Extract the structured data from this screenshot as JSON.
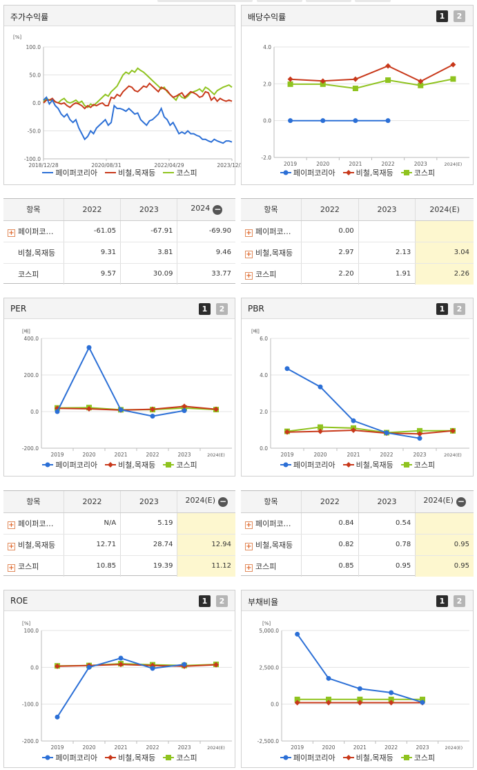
{
  "colors": {
    "company": "#2b6fd6",
    "industry": "#c8381a",
    "kospi": "#8fc31f"
  },
  "series_names": [
    "페이퍼코리아",
    "비철,목재등",
    "코스피"
  ],
  "row_labels_short": [
    "페이퍼코…",
    "비철,목재등",
    "코스피"
  ],
  "table_head": "항목",
  "badges": {
    "one": "1",
    "two": "2"
  },
  "panels": {
    "stock": {
      "title": "주가수익률",
      "chart_data": {
        "type": "line",
        "title": "주가수익률",
        "unit": "[%]",
        "ylim": [
          -100,
          100
        ],
        "yticks": [
          "100.0",
          "50.0",
          "0.0",
          "-50.0",
          "-100.0"
        ],
        "xticks": [
          "2018/12/28",
          "2020/08/31",
          "2022/04/29",
          "2023/12/28"
        ],
        "series": [
          {
            "name": "페이퍼코리아",
            "values": [
              5,
              10,
              -2,
              5,
              -5,
              -10,
              -20,
              -25,
              -20,
              -30,
              -35,
              -30,
              -45,
              -55,
              -65,
              -60,
              -50,
              -55,
              -45,
              -40,
              -35,
              -30,
              -40,
              -35,
              -5,
              -10,
              -10,
              -12,
              -15,
              -10,
              -15,
              -20,
              -18,
              -30,
              -35,
              -40,
              -32,
              -30,
              -25,
              -20,
              -10,
              -25,
              -30,
              -40,
              -35,
              -45,
              -55,
              -52,
              -55,
              -50,
              -55,
              -55,
              -58,
              -60,
              -65,
              -65,
              -68,
              -70,
              -65,
              -68,
              -70,
              -72,
              -68,
              -68,
              -70
            ]
          },
          {
            "name": "비철,목재등",
            "values": [
              0,
              5,
              5,
              8,
              2,
              0,
              -2,
              0,
              -5,
              -8,
              -3,
              0,
              -2,
              -5,
              -10,
              -5,
              -8,
              -3,
              -5,
              -2,
              0,
              -5,
              -5,
              10,
              8,
              15,
              12,
              20,
              25,
              30,
              28,
              22,
              20,
              25,
              30,
              28,
              35,
              30,
              25,
              20,
              28,
              25,
              22,
              15,
              10,
              12,
              15,
              18,
              10,
              15,
              20,
              18,
              15,
              10,
              12,
              20,
              18,
              5,
              10,
              3,
              8,
              5,
              3,
              5,
              3
            ]
          },
          {
            "name": "코스피",
            "values": [
              2,
              8,
              5,
              5,
              2,
              0,
              5,
              8,
              2,
              0,
              2,
              5,
              0,
              3,
              -5,
              -8,
              -2,
              -5,
              0,
              5,
              10,
              15,
              12,
              20,
              25,
              30,
              40,
              50,
              55,
              52,
              58,
              55,
              62,
              58,
              55,
              50,
              45,
              40,
              35,
              30,
              25,
              28,
              20,
              15,
              10,
              5,
              15,
              10,
              8,
              12,
              18,
              20,
              22,
              25,
              20,
              28,
              25,
              20,
              15,
              22,
              25,
              28,
              30,
              32,
              28
            ]
          }
        ]
      }
    },
    "dividend": {
      "title": "배당수익률",
      "chart_data": {
        "type": "line",
        "title": "배당수익률",
        "ylim": [
          -2,
          4
        ],
        "yticks": [
          "4.0",
          "2.0",
          "0.0",
          "-2.0"
        ],
        "categories": [
          "2019",
          "2020",
          "2021",
          "2022",
          "2023",
          "2024(E)"
        ],
        "series": [
          {
            "name": "페이퍼코리아",
            "values": [
              0.0,
              0.0,
              0.0,
              0.0,
              null,
              null
            ]
          },
          {
            "name": "비철,목재등",
            "values": [
              2.25,
              2.15,
              2.25,
              2.97,
              2.13,
              3.04
            ]
          },
          {
            "name": "코스피",
            "values": [
              1.98,
              1.98,
              1.75,
              2.2,
              1.91,
              2.26
            ]
          }
        ]
      },
      "table": {
        "cols": [
          "2022",
          "2023",
          "2024(E)"
        ],
        "rows": [
          [
            "0.00",
            "",
            ""
          ],
          [
            "2.97",
            "2.13",
            "3.04"
          ],
          [
            "2.20",
            "1.91",
            "2.26"
          ]
        ]
      }
    },
    "stock_table": {
      "cols": [
        "2022",
        "2023",
        "2024"
      ],
      "rows": [
        [
          "-61.05",
          "-67.91",
          "-69.90"
        ],
        [
          "9.31",
          "3.81",
          "9.46"
        ],
        [
          "9.57",
          "30.09",
          "33.77"
        ]
      ]
    },
    "per": {
      "title": "PER",
      "chart_data": {
        "type": "line",
        "title": "PER",
        "unit": "[배]",
        "ylim": [
          -200,
          400
        ],
        "yticks": [
          "400.0",
          "200.0",
          "0.0",
          "-200.0"
        ],
        "categories": [
          "2019",
          "2020",
          "2021",
          "2022",
          "2023",
          "2024(E)"
        ],
        "series": [
          {
            "name": "페이퍼코리아",
            "values": [
              0,
              350,
              10,
              -25,
              5.19,
              null
            ]
          },
          {
            "name": "비철,목재등",
            "values": [
              18,
              15,
              8,
              12.71,
              28.74,
              12.94
            ]
          },
          {
            "name": "코스피",
            "values": [
              20,
              22,
              10,
              10.85,
              19.39,
              11.12
            ]
          }
        ]
      },
      "table": {
        "cols": [
          "2022",
          "2023",
          "2024(E)"
        ],
        "rows": [
          [
            "N/A",
            "5.19",
            ""
          ],
          [
            "12.71",
            "28.74",
            "12.94"
          ],
          [
            "10.85",
            "19.39",
            "11.12"
          ]
        ]
      }
    },
    "pbr": {
      "title": "PBR",
      "chart_data": {
        "type": "line",
        "title": "PBR",
        "unit": "[배]",
        "ylim": [
          0,
          6
        ],
        "yticks": [
          "6.0",
          "4.0",
          "2.0",
          "0.0"
        ],
        "categories": [
          "2019",
          "2020",
          "2021",
          "2022",
          "2023",
          "2024(E)"
        ],
        "series": [
          {
            "name": "페이퍼코리아",
            "values": [
              4.35,
              3.35,
              1.5,
              0.84,
              0.54,
              null
            ]
          },
          {
            "name": "비철,목재등",
            "values": [
              0.88,
              0.92,
              0.98,
              0.82,
              0.78,
              0.95
            ]
          },
          {
            "name": "코스피",
            "values": [
              0.92,
              1.15,
              1.1,
              0.85,
              0.95,
              0.95
            ]
          }
        ]
      },
      "table": {
        "cols": [
          "2022",
          "2023",
          "2024(E)"
        ],
        "rows": [
          [
            "0.84",
            "0.54",
            ""
          ],
          [
            "0.82",
            "0.78",
            "0.95"
          ],
          [
            "0.85",
            "0.95",
            "0.95"
          ]
        ]
      }
    },
    "roe": {
      "title": "ROE",
      "chart_data": {
        "type": "line",
        "title": "ROE",
        "unit": "[%]",
        "ylim": [
          -200,
          100
        ],
        "yticks": [
          "100.0",
          "0.0",
          "-100.0",
          "-200.0"
        ],
        "categories": [
          "2019",
          "2020",
          "2021",
          "2022",
          "2023",
          "2024(E)"
        ],
        "series": [
          {
            "name": "페이퍼코리아",
            "values": [
              -135,
              0,
              25,
              -3,
              8,
              null
            ]
          },
          {
            "name": "비철,목재등",
            "values": [
              3,
              5,
              8,
              5,
              3,
              7
            ]
          },
          {
            "name": "코스피",
            "values": [
              4,
              5,
              10,
              7,
              5,
              8
            ]
          }
        ]
      }
    },
    "debt": {
      "title": "부채비율",
      "chart_data": {
        "type": "line",
        "title": "부채비율",
        "unit": "[%]",
        "ylim": [
          -2500,
          5000
        ],
        "yticks": [
          "5,000.0",
          "2,500.0",
          "0.0",
          "-2,500.0"
        ],
        "categories": [
          "2019",
          "2020",
          "2021",
          "2022",
          "2023",
          "2024(E)"
        ],
        "series": [
          {
            "name": "페이퍼코리아",
            "values": [
              4750,
              1750,
              1050,
              780,
              120,
              null
            ]
          },
          {
            "name": "비철,목재등",
            "values": [
              100,
              100,
              100,
              100,
              100,
              null
            ]
          },
          {
            "name": "코스피",
            "values": [
              320,
              320,
              320,
              320,
              320,
              null
            ]
          }
        ]
      }
    }
  }
}
